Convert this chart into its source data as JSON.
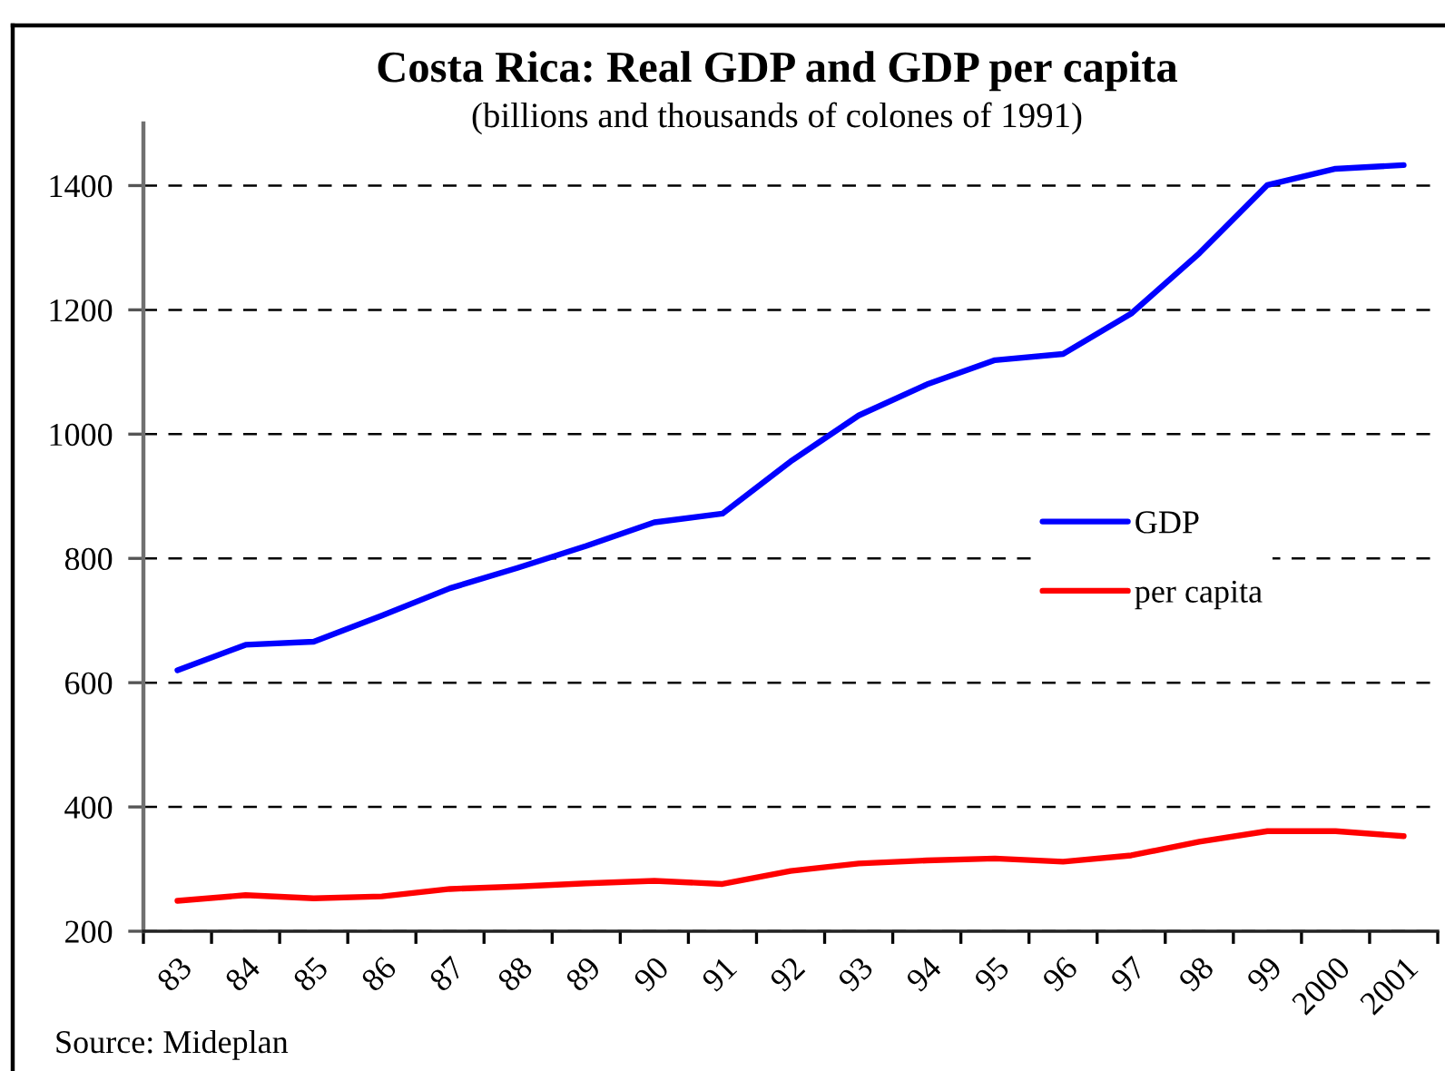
{
  "chart_data": {
    "type": "line",
    "title": "Costa Rica: Real GDP and GDP per capita",
    "subtitle": "(billions and thousands of colones of 1991)",
    "categories": [
      "83",
      "84",
      "85",
      "86",
      "87",
      "88",
      "89",
      "90",
      "91",
      "92",
      "93",
      "94",
      "95",
      "96",
      "97",
      "98",
      "99",
      "2000",
      "2001"
    ],
    "series": [
      {
        "name": "GDP",
        "color": "#0000ff",
        "values": [
          620,
          661,
          666,
          708,
          752,
          785,
          820,
          858,
          872,
          956,
          1030,
          1080,
          1119,
          1129,
          1194,
          1291,
          1401,
          1427,
          1433
        ]
      },
      {
        "name": "per capita",
        "color": "#ff0000",
        "values": [
          249,
          258,
          253,
          256,
          268,
          272,
          277,
          281,
          276,
          297,
          309,
          314,
          317,
          312,
          322,
          344,
          361,
          361,
          353
        ]
      }
    ],
    "ylim": [
      200,
      1500
    ],
    "yticks": [
      200,
      400,
      600,
      800,
      1000,
      1200,
      1400
    ],
    "grid": "y",
    "legend": "right",
    "line_style": "solid",
    "annotations": [
      "Source: Mideplan"
    ]
  }
}
